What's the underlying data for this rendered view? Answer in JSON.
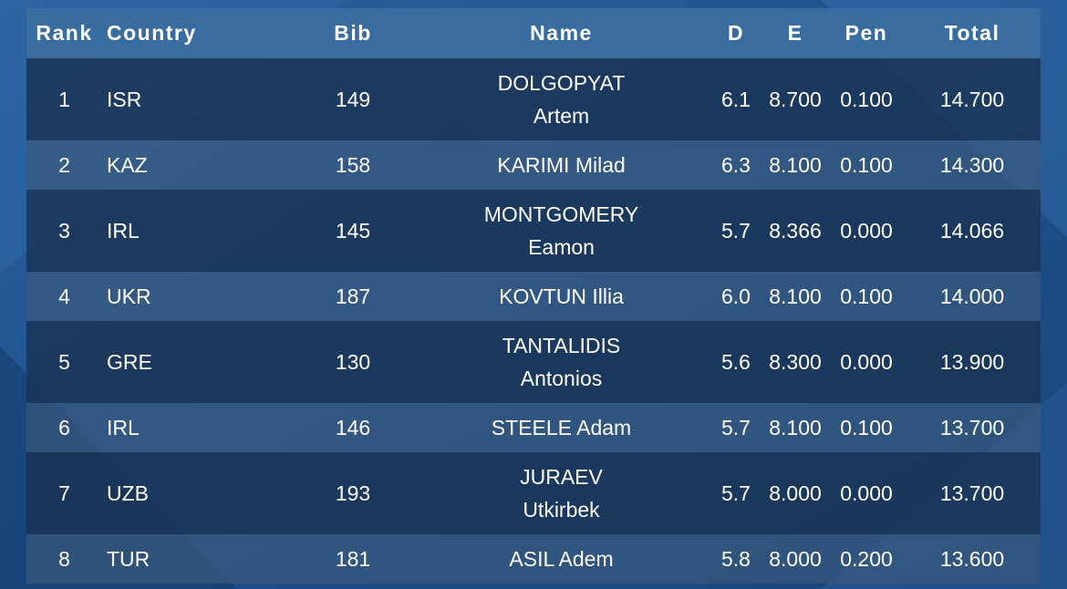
{
  "table": {
    "headers": {
      "rank": "Rank",
      "country": "Country",
      "bib": "Bib",
      "name": "Name",
      "d": "D",
      "e": "E",
      "pen": "Pen",
      "total": "Total"
    },
    "rows": [
      {
        "rank": "1",
        "country": "ISR",
        "bib": "149",
        "name_line1": "DOLGOPYAT",
        "name_line2": "Artem",
        "d": "6.1",
        "e": "8.700",
        "pen": "0.100",
        "total": "14.700"
      },
      {
        "rank": "2",
        "country": "KAZ",
        "bib": "158",
        "name_line1": "KARIMI Milad",
        "name_line2": "",
        "d": "6.3",
        "e": "8.100",
        "pen": "0.100",
        "total": "14.300"
      },
      {
        "rank": "3",
        "country": "IRL",
        "bib": "145",
        "name_line1": "MONTGOMERY",
        "name_line2": "Eamon",
        "d": "5.7",
        "e": "8.366",
        "pen": "0.000",
        "total": "14.066"
      },
      {
        "rank": "4",
        "country": "UKR",
        "bib": "187",
        "name_line1": "KOVTUN Illia",
        "name_line2": "",
        "d": "6.0",
        "e": "8.100",
        "pen": "0.100",
        "total": "14.000"
      },
      {
        "rank": "5",
        "country": "GRE",
        "bib": "130",
        "name_line1": "TANTALIDIS",
        "name_line2": "Antonios",
        "d": "5.6",
        "e": "8.300",
        "pen": "0.000",
        "total": "13.900"
      },
      {
        "rank": "6",
        "country": "IRL",
        "bib": "146",
        "name_line1": "STEELE Adam",
        "name_line2": "",
        "d": "5.7",
        "e": "8.100",
        "pen": "0.100",
        "total": "13.700"
      },
      {
        "rank": "7",
        "country": "UZB",
        "bib": "193",
        "name_line1": "JURAEV",
        "name_line2": "Utkirbek",
        "d": "5.7",
        "e": "8.000",
        "pen": "0.000",
        "total": "13.700"
      },
      {
        "rank": "8",
        "country": "TUR",
        "bib": "181",
        "name_line1": "ASIL Adem",
        "name_line2": "",
        "d": "5.8",
        "e": "8.000",
        "pen": "0.200",
        "total": "13.600"
      }
    ]
  }
}
